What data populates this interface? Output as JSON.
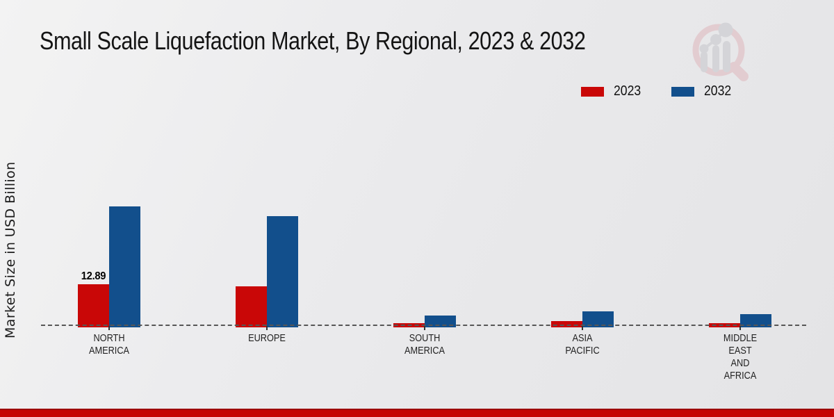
{
  "title": "Small Scale Liquefaction Market, By Regional, 2023 & 2032",
  "chart_data": {
    "type": "bar",
    "title": "Small Scale Liquefaction Market, By Regional, 2023 & 2032",
    "xlabel": "",
    "ylabel": "Market Size in USD Billion",
    "unit": "USD Billion",
    "ylim": [
      0,
      40
    ],
    "grid": false,
    "legend_position": "top-right",
    "baseline_style": "dashed",
    "categories": [
      "NORTH AMERICA",
      "EUROPE",
      "SOUTH AMERICA",
      "ASIA PACIFIC",
      "MIDDLE EAST AND AFRICA"
    ],
    "category_lines": [
      [
        "NORTH",
        "AMERICA"
      ],
      [
        "EUROPE"
      ],
      [
        "SOUTH",
        "AMERICA"
      ],
      [
        "ASIA",
        "PACIFIC"
      ],
      [
        "MIDDLE",
        "EAST",
        "AND",
        "AFRICA"
      ]
    ],
    "series": [
      {
        "name": "2023",
        "color": "#c90707",
        "values": [
          12.89,
          12.3,
          1.35,
          1.9,
          1.3
        ]
      },
      {
        "name": "2032",
        "color": "#124f8c",
        "values": [
          36.2,
          33.3,
          3.6,
          4.8,
          4.0
        ]
      }
    ],
    "data_labels": [
      {
        "series_index": 0,
        "category_index": 0,
        "text": "12.89"
      }
    ]
  },
  "legend": {
    "items": [
      {
        "label": "2023",
        "color": "#c90707"
      },
      {
        "label": "2032",
        "color": "#124f8c"
      }
    ]
  },
  "watermark": {
    "name": "market-research-future-logo",
    "ring_color": "#dfb3b8",
    "bars_color": "#c3c3c9"
  },
  "footer": {
    "bar_color": "#c60404",
    "bar_edge_color": "#9c0202"
  }
}
